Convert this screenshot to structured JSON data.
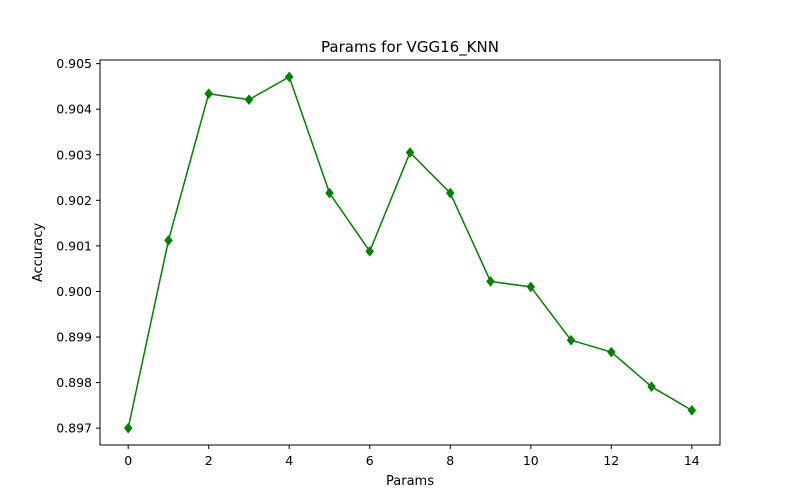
{
  "chart_data": {
    "type": "line",
    "title": "Params for VGG16_KNN",
    "xlabel": "Params",
    "ylabel": "Accuracy",
    "x": [
      0,
      1,
      2,
      3,
      4,
      5,
      6,
      7,
      8,
      9,
      10,
      11,
      12,
      13,
      14
    ],
    "series": [
      {
        "name": "VGG16_KNN",
        "values": [
          0.897,
          0.90112,
          0.90434,
          0.90421,
          0.90471,
          0.90216,
          0.90088,
          0.90305,
          0.90216,
          0.90022,
          0.9001,
          0.89893,
          0.89867,
          0.89791,
          0.89739
        ],
        "color": "#008000",
        "marker": "diamond"
      }
    ],
    "xlim": [
      -0.7,
      14.7
    ],
    "ylim": [
      0.89663,
      0.90508
    ],
    "xticks": [
      0,
      2,
      4,
      6,
      8,
      10,
      12,
      14
    ],
    "xtick_labels": [
      "0",
      "2",
      "4",
      "6",
      "8",
      "10",
      "12",
      "14"
    ],
    "yticks": [
      0.897,
      0.898,
      0.899,
      0.9,
      0.901,
      0.902,
      0.903,
      0.904,
      0.905
    ],
    "ytick_labels": [
      "0.897",
      "0.898",
      "0.899",
      "0.900",
      "0.901",
      "0.902",
      "0.903",
      "0.904",
      "0.905"
    ],
    "grid": false,
    "legend": "none"
  }
}
